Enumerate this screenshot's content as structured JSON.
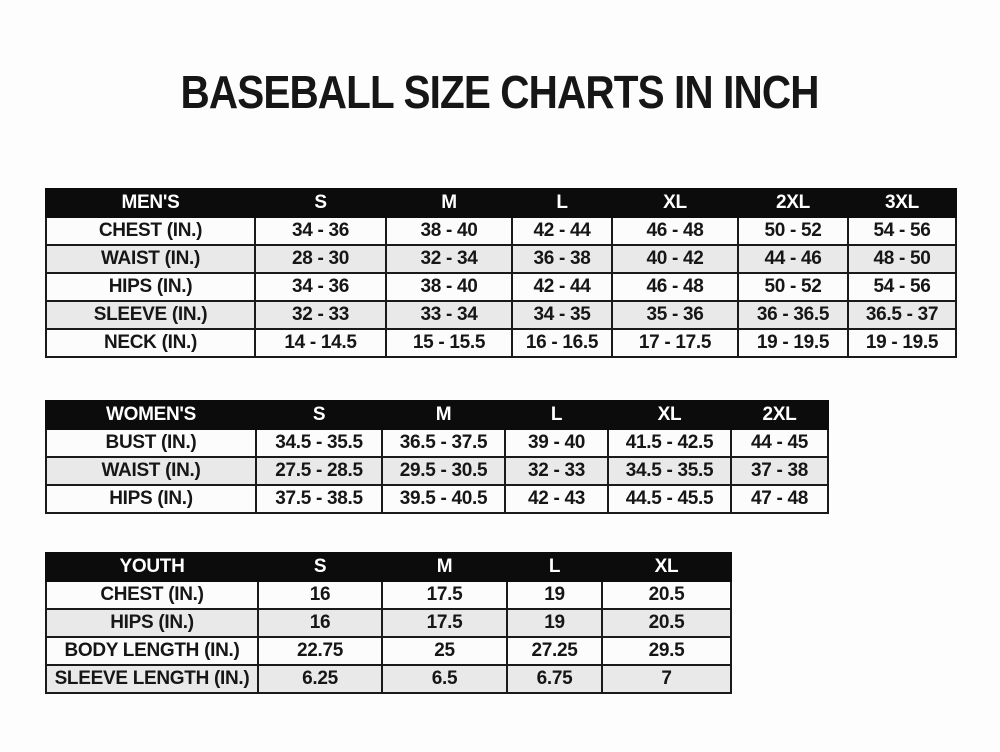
{
  "title": "BASEBALL SIZE CHARTS IN INCH",
  "colors": {
    "page_bg": "#fdfdfd",
    "header_bg": "#0c0c0c",
    "header_text": "#ffffff",
    "row_bg": "#fcfcfc",
    "row_alt_bg": "#e9e9e9",
    "border": "#1a1a1a",
    "text": "#161616"
  },
  "chart_data": [
    {
      "type": "table",
      "name": "MEN'S",
      "columns": [
        "MEN'S",
        "S",
        "M",
        "L",
        "XL",
        "2XL",
        "3XL"
      ],
      "rows": [
        [
          "CHEST (IN.)",
          "34 - 36",
          "38 - 40",
          "42 - 44",
          "46 - 48",
          "50 - 52",
          "54 - 56"
        ],
        [
          "WAIST (IN.)",
          "28 - 30",
          "32 - 34",
          "36 - 38",
          "40 - 42",
          "44 - 46",
          "48 - 50"
        ],
        [
          "HIPS (IN.)",
          "34 - 36",
          "38 - 40",
          "42 - 44",
          "46 - 48",
          "50 - 52",
          "54 - 56"
        ],
        [
          "SLEEVE (IN.)",
          "32 - 33",
          "33 - 34",
          "34 - 35",
          "35 - 36",
          "36 - 36.5",
          "36.5 - 37"
        ],
        [
          "NECK (IN.)",
          "14 - 14.5",
          "15 - 15.5",
          "16 - 16.5",
          "17 - 17.5",
          "19 - 19.5",
          "19 - 19.5"
        ]
      ]
    },
    {
      "type": "table",
      "name": "WOMEN'S",
      "columns": [
        "WOMEN'S",
        "S",
        "M",
        "L",
        "XL",
        "2XL"
      ],
      "rows": [
        [
          "BUST (IN.)",
          "34.5 - 35.5",
          "36.5 - 37.5",
          "39 - 40",
          "41.5 - 42.5",
          "44 - 45"
        ],
        [
          "WAIST (IN.)",
          "27.5 - 28.5",
          "29.5 - 30.5",
          "32 - 33",
          "34.5 - 35.5",
          "37 - 38"
        ],
        [
          "HIPS (IN.)",
          "37.5 - 38.5",
          "39.5 - 40.5",
          "42 - 43",
          "44.5 - 45.5",
          "47 - 48"
        ]
      ]
    },
    {
      "type": "table",
      "name": "YOUTH",
      "columns": [
        "YOUTH",
        "S",
        "M",
        "L",
        "XL"
      ],
      "rows": [
        [
          "CHEST (IN.)",
          "16",
          "17.5",
          "19",
          "20.5"
        ],
        [
          "HIPS (IN.)",
          "16",
          "17.5",
          "19",
          "20.5"
        ],
        [
          "BODY LENGTH (IN.)",
          "22.75",
          "25",
          "27.25",
          "29.5"
        ],
        [
          "SLEEVE LENGTH (IN.)",
          "6.25",
          "6.5",
          "6.75",
          "7"
        ]
      ]
    }
  ]
}
